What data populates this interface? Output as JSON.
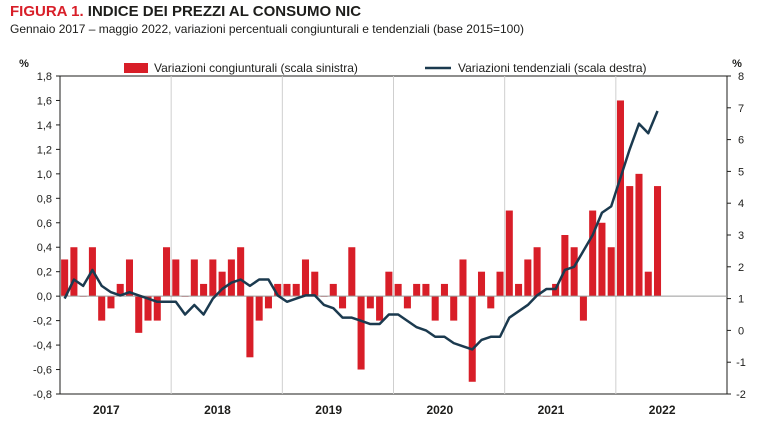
{
  "figure": {
    "label": "FIGURA 1.",
    "title": "INDICE DEI PREZZI AL CONSUMO NIC",
    "subtitle": "Gennaio 2017 – maggio 2022, variazioni percentuali congiunturali e tendenziali (base 2015=100)"
  },
  "chart_data": {
    "type": "bar",
    "left_unit": "%",
    "right_unit": "%",
    "y_left": {
      "lim": [
        -0.8,
        1.8
      ],
      "ticks": [
        "-0,8",
        "-0,6",
        "-0,4",
        "-0,2",
        "0,0",
        "0,2",
        "0,4",
        "0,6",
        "0,8",
        "1,0",
        "1,2",
        "1,4",
        "1,6",
        "1,8"
      ]
    },
    "y_right": {
      "lim": [
        -2,
        8
      ],
      "ticks": [
        "-2",
        "-1",
        "0",
        "1",
        "2",
        "3",
        "4",
        "5",
        "6",
        "7",
        "8"
      ]
    },
    "years": [
      "2017",
      "2018",
      "2019",
      "2020",
      "2021",
      "2022"
    ],
    "grid": "vertical lines at year boundaries",
    "legend_position": "top",
    "series": [
      {
        "name": "Variazioni congiunturali (scala sinistra)",
        "type": "bar",
        "axis": "left",
        "color": "#d81e28",
        "values": [
          0.3,
          0.4,
          0.0,
          0.4,
          -0.2,
          -0.1,
          0.1,
          0.3,
          -0.3,
          -0.2,
          -0.2,
          0.4,
          0.3,
          0.0,
          0.3,
          0.1,
          0.3,
          0.2,
          0.3,
          0.4,
          -0.5,
          -0.2,
          -0.1,
          0.1,
          0.1,
          0.1,
          0.3,
          0.2,
          0.0,
          0.1,
          -0.1,
          0.4,
          -0.6,
          -0.1,
          -0.2,
          0.2,
          0.1,
          -0.1,
          0.1,
          0.1,
          -0.2,
          0.1,
          -0.2,
          0.3,
          -0.7,
          0.2,
          -0.1,
          0.2,
          0.7,
          0.1,
          0.3,
          0.4,
          0.0,
          0.1,
          0.5,
          0.4,
          -0.2,
          0.7,
          0.6,
          0.4,
          1.6,
          0.9,
          1.0,
          0.2,
          0.9
        ]
      },
      {
        "name": "Variazioni tendenziali (scala destra)",
        "type": "line",
        "axis": "right",
        "color": "#1b3a4f",
        "values": [
          1.0,
          1.6,
          1.4,
          1.9,
          1.4,
          1.2,
          1.1,
          1.2,
          1.1,
          1.0,
          0.9,
          0.9,
          0.9,
          0.5,
          0.8,
          0.5,
          1.0,
          1.3,
          1.5,
          1.6,
          1.4,
          1.6,
          1.6,
          1.1,
          0.9,
          1.0,
          1.1,
          1.1,
          0.8,
          0.7,
          0.4,
          0.4,
          0.3,
          0.2,
          0.2,
          0.5,
          0.5,
          0.3,
          0.1,
          0.0,
          -0.2,
          -0.2,
          -0.4,
          -0.5,
          -0.6,
          -0.3,
          -0.2,
          -0.2,
          0.4,
          0.6,
          0.8,
          1.1,
          1.3,
          1.3,
          1.9,
          2.0,
          2.5,
          3.0,
          3.7,
          3.9,
          4.8,
          5.7,
          6.5,
          6.2,
          6.9
        ]
      }
    ]
  }
}
